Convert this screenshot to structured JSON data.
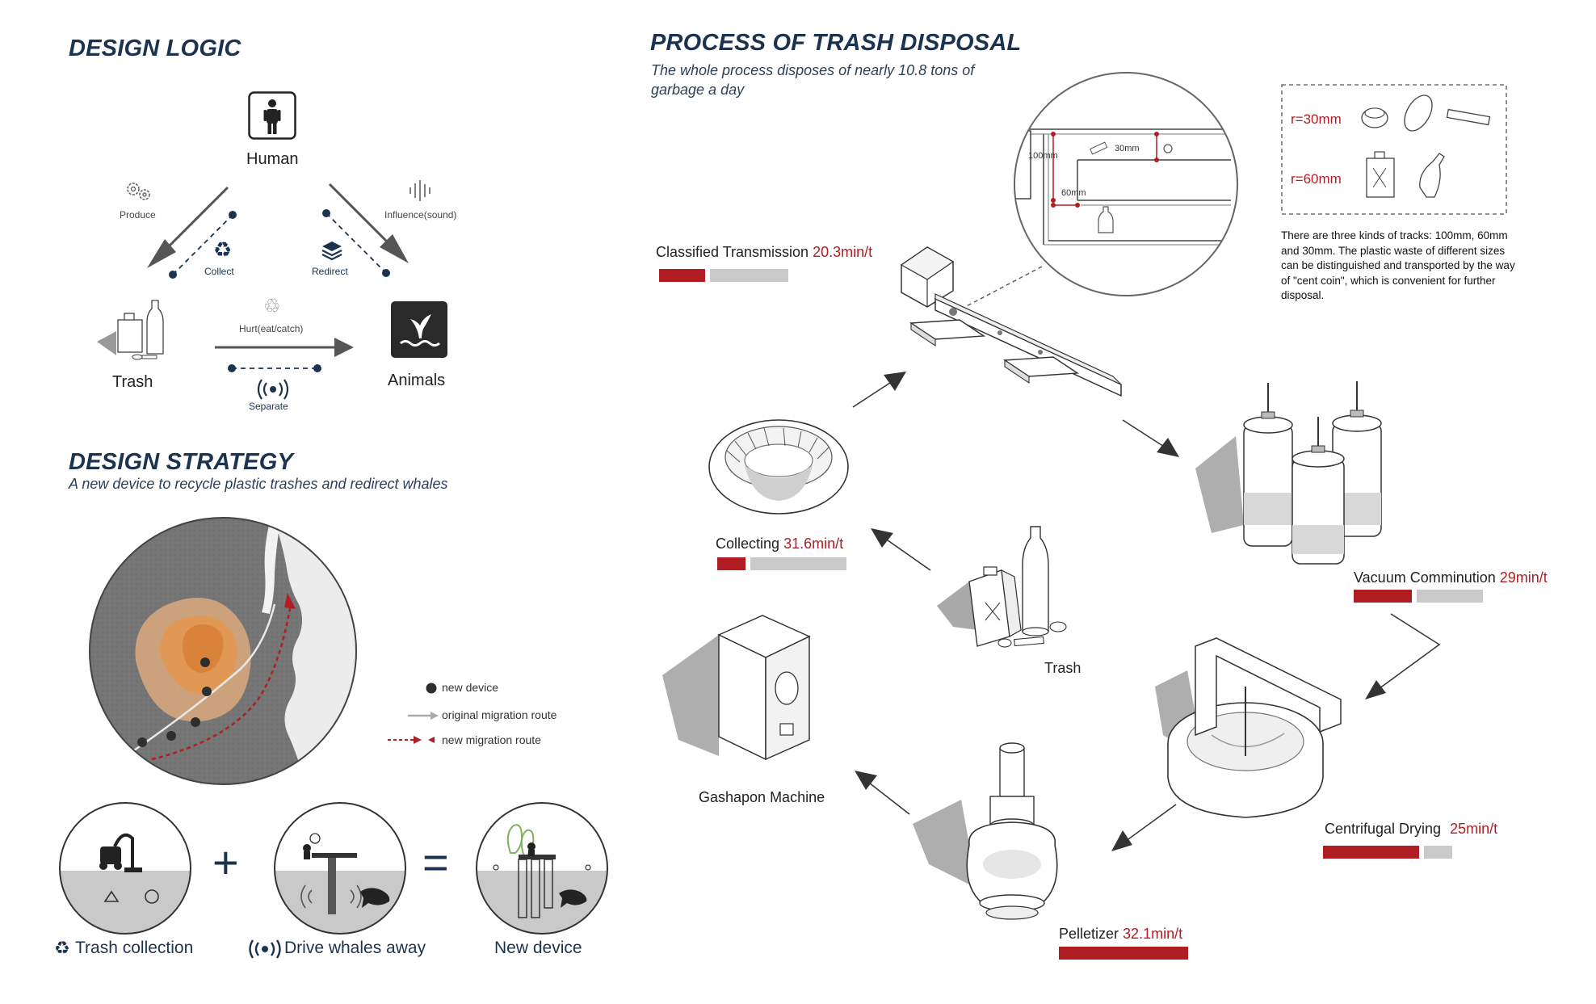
{
  "design_logic": {
    "title": "DESIGN LOGIC",
    "nodes": {
      "human": "Human",
      "trash": "Trash",
      "animals": "Animals"
    },
    "relations": {
      "produce": "Produce",
      "collect": "Collect",
      "influence": "Influence(sound)",
      "redirect": "Redirect",
      "hurt": "Hurt(eat/catch)",
      "separate": "Separate"
    }
  },
  "design_strategy": {
    "title": "DESIGN STRATEGY",
    "subtitle": "A new device to recycle plastic trashes and redirect whales",
    "legend": {
      "new_device": "new device",
      "original_route": "original migration route",
      "new_route": "new migration route"
    },
    "equation": {
      "trash_collection": "Trash collection",
      "drive_whales": "Drive whales away",
      "new_device": "New device"
    }
  },
  "process": {
    "title": "PROCESS OF TRASH DISPOSAL",
    "subtitle_line1": "The whole process disposes of nearly 10.8 tons of",
    "subtitle_line2": "garbage a day",
    "tracks": {
      "t100": "100mm",
      "t30": "30mm",
      "t60": "60mm"
    },
    "sizes": {
      "r30": "r=30mm",
      "r60": "r=60mm"
    },
    "note": "There are three kinds of tracks: 100mm, 60mm and 30mm. The plastic waste of different sizes can be distinguished and transported by the way of \"cent coin\", which is convenient for further disposal.",
    "center_label": "Trash",
    "gashapon": "Gashapon Machine",
    "steps": [
      {
        "name": "Classified Transmission",
        "rate": "20.3min/t",
        "progress": 0.37
      },
      {
        "name": "Vacuum Comminution",
        "rate": "29min/t",
        "progress": 0.47
      },
      {
        "name": "Centrifugal Drying",
        "rate": "25min/t",
        "progress": 0.77
      },
      {
        "name": "Pelletizer",
        "rate": "32.1min/t",
        "progress": 1.0
      },
      {
        "name": "Collecting",
        "rate": "31.6min/t",
        "progress": 0.23
      }
    ]
  },
  "colors": {
    "navy": "#1c3350",
    "accent_red": "#b01e23",
    "bar_grey": "#c9c9c9",
    "orange_zone": "#e29a55"
  }
}
